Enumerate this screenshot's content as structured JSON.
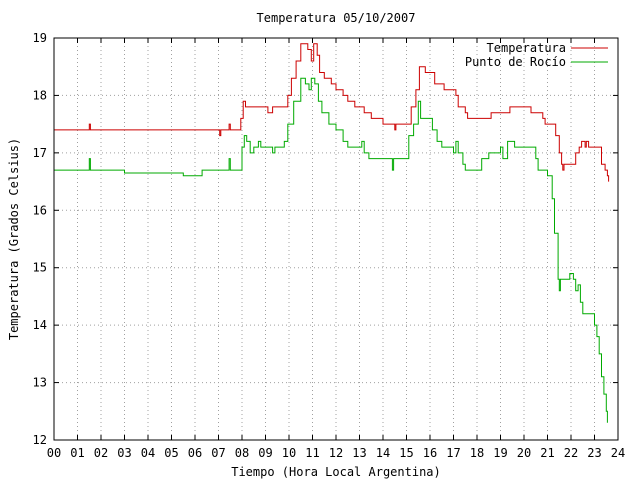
{
  "chart_data": {
    "type": "line",
    "title": "Temperatura 05/10/2007",
    "xlabel": "Tiempo (Hora Local Argentina)",
    "ylabel": "Temperatura (Grados Celsius)",
    "xlim": [
      0,
      24
    ],
    "ylim": [
      12,
      19
    ],
    "x_ticks": [
      "00",
      "01",
      "02",
      "03",
      "04",
      "05",
      "06",
      "07",
      "08",
      "09",
      "10",
      "11",
      "12",
      "13",
      "14",
      "15",
      "16",
      "17",
      "18",
      "19",
      "20",
      "21",
      "22",
      "23",
      "24"
    ],
    "y_ticks": [
      "12",
      "13",
      "14",
      "15",
      "16",
      "17",
      "18",
      "19"
    ],
    "grid": true,
    "legend_position": "top-right",
    "series": [
      {
        "name": "Temperatura",
        "color": "#cc0000",
        "points": [
          [
            0.0,
            17.4
          ],
          [
            1.45,
            17.4
          ],
          [
            1.5,
            17.5
          ],
          [
            1.55,
            17.4
          ],
          [
            6.9,
            17.4
          ],
          [
            7.05,
            17.3
          ],
          [
            7.1,
            17.4
          ],
          [
            7.4,
            17.4
          ],
          [
            7.45,
            17.5
          ],
          [
            7.5,
            17.4
          ],
          [
            7.9,
            17.4
          ],
          [
            7.95,
            17.6
          ],
          [
            8.05,
            17.9
          ],
          [
            8.15,
            17.8
          ],
          [
            9.0,
            17.8
          ],
          [
            9.1,
            17.7
          ],
          [
            9.3,
            17.8
          ],
          [
            9.8,
            17.8
          ],
          [
            9.95,
            18.0
          ],
          [
            10.1,
            18.3
          ],
          [
            10.3,
            18.6
          ],
          [
            10.5,
            18.9
          ],
          [
            10.8,
            18.8
          ],
          [
            10.95,
            18.6
          ],
          [
            11.05,
            18.9
          ],
          [
            11.2,
            18.7
          ],
          [
            11.3,
            18.4
          ],
          [
            11.5,
            18.3
          ],
          [
            11.8,
            18.2
          ],
          [
            12.0,
            18.1
          ],
          [
            12.3,
            18.0
          ],
          [
            12.5,
            17.9
          ],
          [
            12.8,
            17.8
          ],
          [
            13.2,
            17.7
          ],
          [
            13.5,
            17.6
          ],
          [
            13.9,
            17.6
          ],
          [
            14.0,
            17.5
          ],
          [
            14.4,
            17.5
          ],
          [
            14.5,
            17.4
          ],
          [
            14.55,
            17.5
          ],
          [
            15.1,
            17.5
          ],
          [
            15.2,
            17.8
          ],
          [
            15.4,
            18.1
          ],
          [
            15.55,
            18.5
          ],
          [
            15.8,
            18.4
          ],
          [
            16.0,
            18.4
          ],
          [
            16.2,
            18.2
          ],
          [
            16.5,
            18.2
          ],
          [
            16.6,
            18.1
          ],
          [
            17.1,
            18.0
          ],
          [
            17.2,
            17.8
          ],
          [
            17.5,
            17.7
          ],
          [
            17.6,
            17.6
          ],
          [
            18.5,
            17.6
          ],
          [
            18.6,
            17.7
          ],
          [
            19.3,
            17.7
          ],
          [
            19.4,
            17.8
          ],
          [
            20.2,
            17.8
          ],
          [
            20.3,
            17.7
          ],
          [
            20.8,
            17.6
          ],
          [
            20.9,
            17.5
          ],
          [
            21.2,
            17.5
          ],
          [
            21.35,
            17.3
          ],
          [
            21.5,
            17.0
          ],
          [
            21.6,
            16.8
          ],
          [
            21.65,
            16.7
          ],
          [
            21.7,
            16.8
          ],
          [
            22.1,
            16.8
          ],
          [
            22.2,
            17.0
          ],
          [
            22.35,
            17.1
          ],
          [
            22.45,
            17.2
          ],
          [
            22.6,
            17.1
          ],
          [
            22.65,
            17.2
          ],
          [
            22.75,
            17.1
          ],
          [
            23.2,
            17.1
          ],
          [
            23.3,
            16.8
          ],
          [
            23.45,
            16.7
          ],
          [
            23.55,
            16.6
          ],
          [
            23.6,
            16.5
          ]
        ]
      },
      {
        "name": "Punto de Rocío",
        "color": "#00aa00",
        "points": [
          [
            0.0,
            16.7
          ],
          [
            1.45,
            16.7
          ],
          [
            1.5,
            16.9
          ],
          [
            1.55,
            16.7
          ],
          [
            3.0,
            16.65
          ],
          [
            5.5,
            16.6
          ],
          [
            6.2,
            16.6
          ],
          [
            6.3,
            16.7
          ],
          [
            7.4,
            16.7
          ],
          [
            7.45,
            16.9
          ],
          [
            7.5,
            16.7
          ],
          [
            7.9,
            16.7
          ],
          [
            8.0,
            17.1
          ],
          [
            8.1,
            17.3
          ],
          [
            8.2,
            17.2
          ],
          [
            8.35,
            17.0
          ],
          [
            8.5,
            17.1
          ],
          [
            8.7,
            17.2
          ],
          [
            8.8,
            17.1
          ],
          [
            9.3,
            17.0
          ],
          [
            9.4,
            17.1
          ],
          [
            9.8,
            17.2
          ],
          [
            9.95,
            17.5
          ],
          [
            10.2,
            17.9
          ],
          [
            10.5,
            18.3
          ],
          [
            10.7,
            18.2
          ],
          [
            10.85,
            18.1
          ],
          [
            10.95,
            18.3
          ],
          [
            11.1,
            18.2
          ],
          [
            11.25,
            17.9
          ],
          [
            11.4,
            17.7
          ],
          [
            11.7,
            17.5
          ],
          [
            12.0,
            17.4
          ],
          [
            12.3,
            17.2
          ],
          [
            12.5,
            17.1
          ],
          [
            13.0,
            17.1
          ],
          [
            13.1,
            17.2
          ],
          [
            13.2,
            17.0
          ],
          [
            13.4,
            16.9
          ],
          [
            14.3,
            16.9
          ],
          [
            14.4,
            16.7
          ],
          [
            14.45,
            16.9
          ],
          [
            14.9,
            16.9
          ],
          [
            15.1,
            17.3
          ],
          [
            15.3,
            17.5
          ],
          [
            15.5,
            17.9
          ],
          [
            15.6,
            17.6
          ],
          [
            16.0,
            17.6
          ],
          [
            16.1,
            17.4
          ],
          [
            16.3,
            17.2
          ],
          [
            16.5,
            17.1
          ],
          [
            17.0,
            17.0
          ],
          [
            17.1,
            17.2
          ],
          [
            17.2,
            17.0
          ],
          [
            17.4,
            16.8
          ],
          [
            17.5,
            16.7
          ],
          [
            18.1,
            16.7
          ],
          [
            18.2,
            16.9
          ],
          [
            18.5,
            17.0
          ],
          [
            18.9,
            17.0
          ],
          [
            19.0,
            17.1
          ],
          [
            19.1,
            16.9
          ],
          [
            19.3,
            17.2
          ],
          [
            19.6,
            17.1
          ],
          [
            20.4,
            17.1
          ],
          [
            20.5,
            16.9
          ],
          [
            20.6,
            16.7
          ],
          [
            20.9,
            16.7
          ],
          [
            21.0,
            16.6
          ],
          [
            21.1,
            16.6
          ],
          [
            21.2,
            16.2
          ],
          [
            21.3,
            15.6
          ],
          [
            21.45,
            14.8
          ],
          [
            21.5,
            14.6
          ],
          [
            21.55,
            14.8
          ],
          [
            21.9,
            14.8
          ],
          [
            21.95,
            14.9
          ],
          [
            22.1,
            14.8
          ],
          [
            22.2,
            14.6
          ],
          [
            22.3,
            14.7
          ],
          [
            22.4,
            14.4
          ],
          [
            22.5,
            14.2
          ],
          [
            22.9,
            14.2
          ],
          [
            23.0,
            14.0
          ],
          [
            23.1,
            13.8
          ],
          [
            23.2,
            13.5
          ],
          [
            23.3,
            13.1
          ],
          [
            23.4,
            12.8
          ],
          [
            23.5,
            12.5
          ],
          [
            23.55,
            12.3
          ]
        ]
      }
    ]
  }
}
